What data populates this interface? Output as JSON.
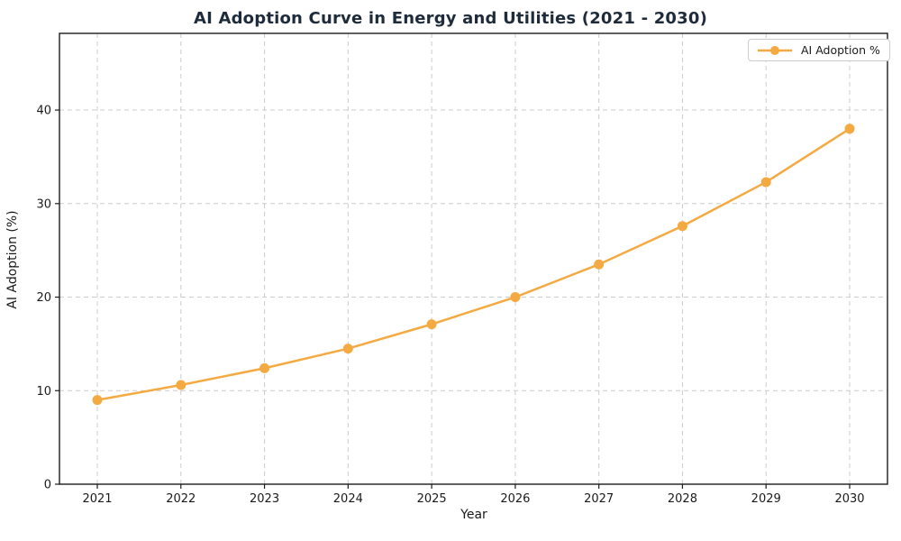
{
  "title": "AI Adoption Curve in Energy and Utilities (2021 - 2030)",
  "legend": {
    "label": "AI Adoption %",
    "position": "upper right"
  },
  "colors": {
    "line": "#f4aa42",
    "marker": "#f4aa42",
    "grid": "#cccccc",
    "spine": "#1c1c1c",
    "tick_text": "#1a1a1a",
    "title_text": "#1e2b3a",
    "background": "#ffffff",
    "legend_border": "#cccccc"
  },
  "chart_data": {
    "type": "line",
    "title": "AI Adoption Curve in Energy and Utilities (2021 - 2030)",
    "xlabel": "Year",
    "ylabel": "AI Adoption (%)",
    "categories": [
      "2021",
      "2022",
      "2023",
      "2024",
      "2025",
      "2026",
      "2027",
      "2028",
      "2029",
      "2030"
    ],
    "series": [
      {
        "name": "AI Adoption %",
        "values": [
          9.0,
          10.6,
          12.4,
          14.5,
          17.1,
          20.0,
          23.5,
          27.6,
          32.3,
          38.0
        ]
      }
    ],
    "ylim": [
      0,
      48.2
    ],
    "yticks": [
      0,
      10,
      20,
      30,
      40
    ],
    "grid": true,
    "grid_style": "dashed",
    "legend_position": "upper right",
    "marker": "o",
    "line_width": 2.5,
    "marker_radius": 5.5
  }
}
